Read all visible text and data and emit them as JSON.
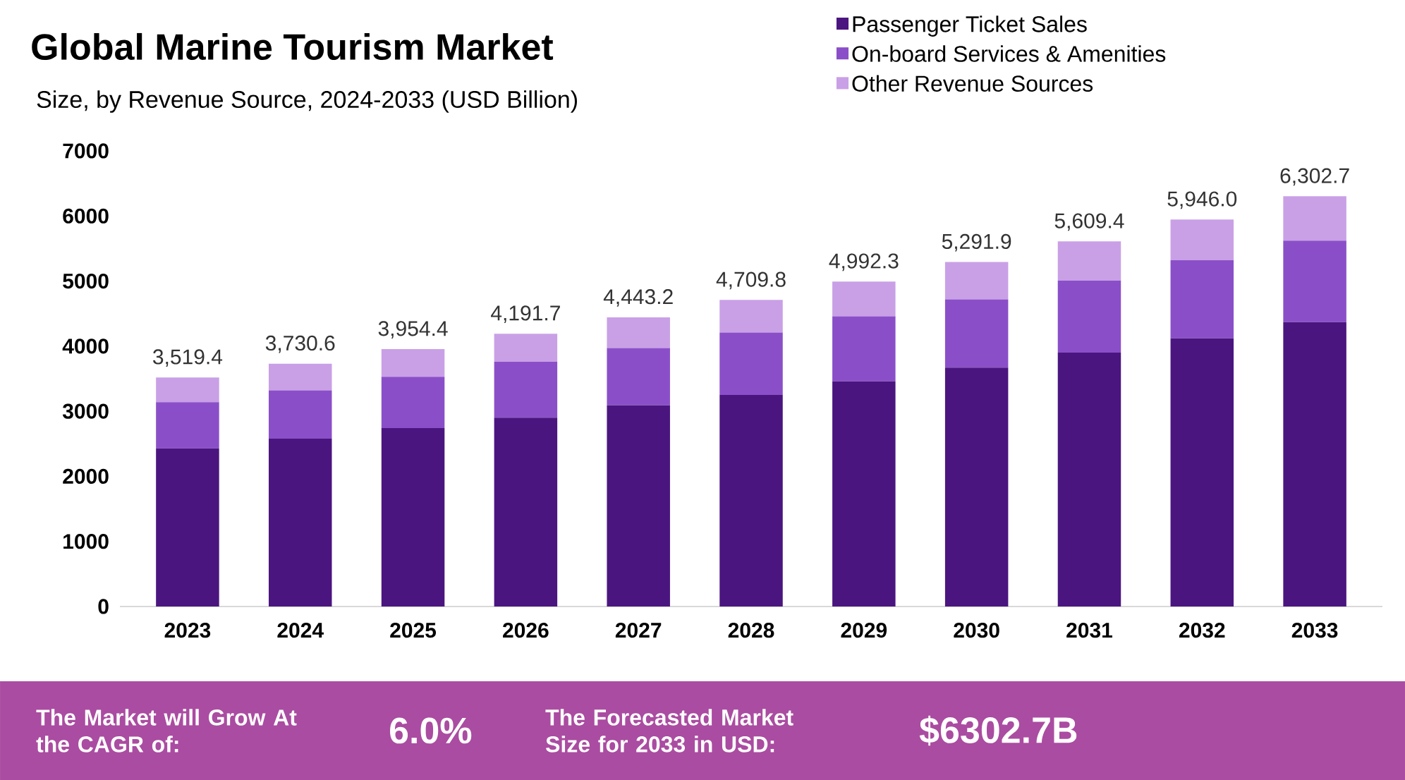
{
  "chart_data": {
    "type": "bar",
    "title": "Global Marine Tourism Market",
    "subtitle": "Size, by Revenue Source, 2024-2033 (USD Billion)",
    "categories": [
      "2023",
      "2024",
      "2025",
      "2026",
      "2027",
      "2028",
      "2029",
      "2030",
      "2031",
      "2032",
      "2033"
    ],
    "stacked": true,
    "series": [
      {
        "name": "Passenger Ticket Sales",
        "color": "#4b1580",
        "values": [
          2430,
          2580,
          2740,
          2900,
          3090,
          3250,
          3460,
          3670,
          3900,
          4120,
          4370
        ]
      },
      {
        "name": "On-board Services & Amenities",
        "color": "#8a4fc8",
        "values": [
          710,
          740,
          790,
          860,
          880,
          960,
          1000,
          1050,
          1110,
          1200,
          1250
        ]
      },
      {
        "name": "Other Revenue Sources",
        "color": "#c9a0e6",
        "values": [
          379.4,
          410.6,
          424.4,
          431.7,
          473.2,
          499.8,
          532.3,
          571.9,
          599.4,
          626.0,
          682.7
        ]
      }
    ],
    "totals": [
      "3,519.4",
      "3,730.6",
      "3,954.4",
      "4,191.7",
      "4,443.2",
      "4,709.8",
      "4,992.3",
      "5,291.9",
      "5,609.4",
      "5,946.0",
      "6,302.7"
    ],
    "ylim": [
      0,
      7000
    ],
    "yticks": [
      0,
      1000,
      2000,
      3000,
      4000,
      5000,
      6000,
      7000
    ],
    "grid": false,
    "legend": "top right",
    "annotations": [
      "The Market will Grow At the CAGR of:",
      "6.0%",
      "The Forecasted Market Size for 2033 in USD:",
      "$6302.7B"
    ]
  }
}
